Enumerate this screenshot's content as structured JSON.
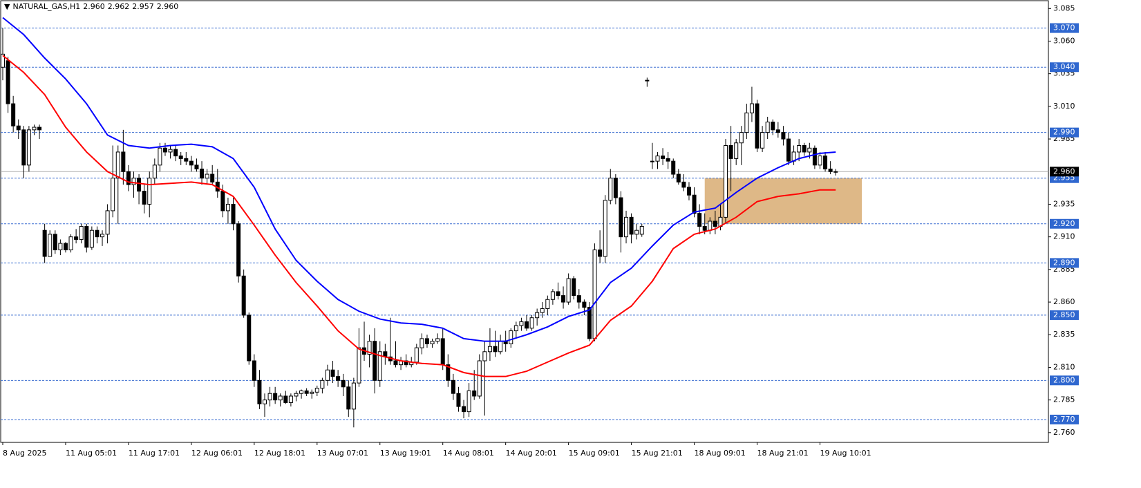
{
  "chart_data": {
    "type": "candlestick",
    "title": "NATURAL_GAS,H1",
    "header_ohlc": [
      "2.960",
      "2.962",
      "2.957",
      "2.960"
    ],
    "categories": [
      "8 Aug 2025",
      null,
      null,
      null,
      null,
      null,
      null,
      null,
      null,
      null,
      null,
      null,
      "11 Aug 05:01",
      null,
      null,
      null,
      null,
      null,
      null,
      null,
      null,
      null,
      null,
      null,
      "11 Aug 17:01",
      null,
      null,
      null,
      null,
      null,
      null,
      null,
      null,
      null,
      null,
      null,
      "12 Aug 06:01",
      null,
      null,
      null,
      null,
      null,
      null,
      null,
      null,
      null,
      null,
      null,
      "12 Aug 18:01",
      null,
      null,
      null,
      null,
      null,
      null,
      null,
      null,
      null,
      null,
      null,
      "13 Aug 07:01",
      null,
      null,
      null,
      null,
      null,
      null,
      null,
      null,
      null,
      null,
      null,
      "13 Aug 19:01",
      null,
      null,
      null,
      null,
      null,
      null,
      null,
      null,
      null,
      null,
      null,
      "14 Aug 08:01",
      null,
      null,
      null,
      null,
      null,
      null,
      null,
      null,
      null,
      null,
      null,
      "14 Aug 20:01",
      null,
      null,
      null,
      null,
      null,
      null,
      null,
      null,
      null,
      null,
      null,
      "15 Aug 09:01",
      null,
      null,
      null,
      null,
      null,
      null,
      null,
      null,
      null,
      null,
      null,
      "15 Aug 21:01",
      null,
      null,
      null,
      null,
      null,
      null,
      null,
      null,
      null,
      null,
      null,
      "18 Aug 09:01",
      null,
      null,
      null,
      null,
      null,
      null,
      null,
      null,
      null,
      null,
      null,
      "18 Aug 21:01",
      null,
      null,
      null,
      null,
      null,
      null,
      null,
      null,
      null,
      null,
      null,
      "19 Aug 10:01",
      null,
      null,
      null
    ],
    "ohlc": [
      [
        3.04,
        3.07,
        3.03,
        3.05
      ],
      [
        3.045,
        3.048,
        3.005,
        3.012
      ],
      [
        3.012,
        3.018,
        2.99,
        2.995
      ],
      [
        2.995,
        3.0,
        2.985,
        2.992
      ],
      [
        2.992,
        2.995,
        2.955,
        2.965
      ],
      [
        2.965,
        2.995,
        2.96,
        2.992
      ],
      [
        2.992,
        2.996,
        2.988,
        2.994
      ],
      [
        2.994,
        2.996,
        2.985,
        2.992
      ],
      [
        2.915,
        2.92,
        2.89,
        2.895
      ],
      [
        2.895,
        2.915,
        2.895,
        2.912
      ],
      [
        2.912,
        2.915,
        2.897,
        2.9
      ],
      [
        2.9,
        2.908,
        2.896,
        2.905
      ],
      [
        2.905,
        2.906,
        2.898,
        2.9
      ],
      [
        2.9,
        2.912,
        2.898,
        2.91
      ],
      [
        2.91,
        2.916,
        2.905,
        2.908
      ],
      [
        2.908,
        2.92,
        2.905,
        2.918
      ],
      [
        2.918,
        2.92,
        2.898,
        2.902
      ],
      [
        2.902,
        2.918,
        2.9,
        2.915
      ],
      [
        2.915,
        2.918,
        2.905,
        2.91
      ],
      [
        2.91,
        2.915,
        2.903,
        2.912
      ],
      [
        2.912,
        2.935,
        2.905,
        2.93
      ],
      [
        2.93,
        2.98,
        2.925,
        2.955
      ],
      [
        2.955,
        2.98,
        2.92,
        2.975
      ],
      [
        2.975,
        2.992,
        2.95,
        2.96
      ],
      [
        2.96,
        2.965,
        2.945,
        2.95
      ],
      [
        2.95,
        2.96,
        2.94,
        2.955
      ],
      [
        2.955,
        2.958,
        2.935,
        2.945
      ],
      [
        2.945,
        2.95,
        2.928,
        2.935
      ],
      [
        2.935,
        2.96,
        2.925,
        2.955
      ],
      [
        2.955,
        2.97,
        2.95,
        2.965
      ],
      [
        2.965,
        2.982,
        2.96,
        2.978
      ],
      [
        2.978,
        2.982,
        2.972,
        2.975
      ],
      [
        2.975,
        2.98,
        2.97,
        2.977
      ],
      [
        2.977,
        2.98,
        2.968,
        2.972
      ],
      [
        2.972,
        2.975,
        2.965,
        2.97
      ],
      [
        2.97,
        2.975,
        2.965,
        2.968
      ],
      [
        2.968,
        2.972,
        2.96,
        2.965
      ],
      [
        2.965,
        2.97,
        2.96,
        2.962
      ],
      [
        2.962,
        2.968,
        2.95,
        2.955
      ],
      [
        2.955,
        2.962,
        2.95,
        2.958
      ],
      [
        2.958,
        2.965,
        2.95,
        2.952
      ],
      [
        2.952,
        2.962,
        2.94,
        2.945
      ],
      [
        2.945,
        2.95,
        2.925,
        2.93
      ],
      [
        2.93,
        2.94,
        2.92,
        2.935
      ],
      [
        2.935,
        2.94,
        2.915,
        2.92
      ],
      [
        2.92,
        2.922,
        2.875,
        2.88
      ],
      [
        2.88,
        2.885,
        2.848,
        2.85
      ],
      [
        2.85,
        2.852,
        2.812,
        2.815
      ],
      [
        2.815,
        2.82,
        2.795,
        2.8
      ],
      [
        2.8,
        2.808,
        2.778,
        2.782
      ],
      [
        2.782,
        2.79,
        2.772,
        2.785
      ],
      [
        2.785,
        2.795,
        2.78,
        2.79
      ],
      [
        2.79,
        2.795,
        2.782,
        2.785
      ],
      [
        2.785,
        2.79,
        2.78,
        2.788
      ],
      [
        2.788,
        2.792,
        2.782,
        2.783
      ],
      [
        2.783,
        2.79,
        2.78,
        2.788
      ],
      [
        2.788,
        2.792,
        2.784,
        2.79
      ],
      [
        2.79,
        2.793,
        2.786,
        2.792
      ],
      [
        2.792,
        2.794,
        2.788,
        2.79
      ],
      [
        2.79,
        2.793,
        2.786,
        2.791
      ],
      [
        2.791,
        2.796,
        2.788,
        2.794
      ],
      [
        2.794,
        2.802,
        2.79,
        2.8
      ],
      [
        2.8,
        2.812,
        2.796,
        2.808
      ],
      [
        2.808,
        2.815,
        2.798,
        2.803
      ],
      [
        2.803,
        2.808,
        2.795,
        2.8
      ],
      [
        2.8,
        2.805,
        2.788,
        2.795
      ],
      [
        2.795,
        2.8,
        2.772,
        2.778
      ],
      [
        2.778,
        2.802,
        2.764,
        2.798
      ],
      [
        2.798,
        2.84,
        2.795,
        2.825
      ],
      [
        2.825,
        2.845,
        2.815,
        2.82
      ],
      [
        2.82,
        2.835,
        2.81,
        2.83
      ],
      [
        2.83,
        2.84,
        2.79,
        2.8
      ],
      [
        2.8,
        2.83,
        2.795,
        2.822
      ],
      [
        2.822,
        2.828,
        2.812,
        2.818
      ],
      [
        2.818,
        2.848,
        2.812,
        2.815
      ],
      [
        2.815,
        2.83,
        2.81,
        2.812
      ],
      [
        2.812,
        2.818,
        2.808,
        2.815
      ],
      [
        2.815,
        2.82,
        2.81,
        2.812
      ],
      [
        2.812,
        2.818,
        2.81,
        2.814
      ],
      [
        2.814,
        2.828,
        2.812,
        2.825
      ],
      [
        2.825,
        2.836,
        2.82,
        2.832
      ],
      [
        2.832,
        2.835,
        2.825,
        2.828
      ],
      [
        2.828,
        2.832,
        2.825,
        2.83
      ],
      [
        2.83,
        2.836,
        2.828,
        2.832
      ],
      [
        2.832,
        2.84,
        2.808,
        2.812
      ],
      [
        2.812,
        2.82,
        2.795,
        2.8
      ],
      [
        2.8,
        2.805,
        2.785,
        2.79
      ],
      [
        2.79,
        2.795,
        2.776,
        2.78
      ],
      [
        2.78,
        2.785,
        2.771,
        2.776
      ],
      [
        2.776,
        2.798,
        2.772,
        2.792
      ],
      [
        2.792,
        2.808,
        2.785,
        2.788
      ],
      [
        2.788,
        2.82,
        2.786,
        2.815
      ],
      [
        2.815,
        2.83,
        2.773,
        2.822
      ],
      [
        2.822,
        2.84,
        2.815,
        2.826
      ],
      [
        2.826,
        2.838,
        2.818,
        2.822
      ],
      [
        2.822,
        2.835,
        2.82,
        2.83
      ],
      [
        2.83,
        2.838,
        2.822,
        2.828
      ],
      [
        2.828,
        2.84,
        2.825,
        2.838
      ],
      [
        2.838,
        2.845,
        2.832,
        2.842
      ],
      [
        2.842,
        2.848,
        2.838,
        2.845
      ],
      [
        2.845,
        2.85,
        2.838,
        2.84
      ],
      [
        2.84,
        2.85,
        2.838,
        2.848
      ],
      [
        2.848,
        2.855,
        2.842,
        2.852
      ],
      [
        2.852,
        2.86,
        2.848,
        2.855
      ],
      [
        2.855,
        2.865,
        2.85,
        2.862
      ],
      [
        2.862,
        2.87,
        2.858,
        2.868
      ],
      [
        2.868,
        2.875,
        2.862,
        2.865
      ],
      [
        2.865,
        2.872,
        2.855,
        2.86
      ],
      [
        2.86,
        2.882,
        2.858,
        2.878
      ],
      [
        2.878,
        2.88,
        2.862,
        2.865
      ],
      [
        2.865,
        2.87,
        2.855,
        2.86
      ],
      [
        2.86,
        2.862,
        2.85,
        2.856
      ],
      [
        2.856,
        2.86,
        2.83,
        2.832
      ],
      [
        2.832,
        2.905,
        2.83,
        2.9
      ],
      [
        2.9,
        2.915,
        2.89,
        2.895
      ],
      [
        2.895,
        2.942,
        2.89,
        2.938
      ],
      [
        2.938,
        2.962,
        2.935,
        2.955
      ],
      [
        2.955,
        2.958,
        2.935,
        2.94
      ],
      [
        2.94,
        2.945,
        2.898,
        2.91
      ],
      [
        2.91,
        2.93,
        2.905,
        2.925
      ],
      [
        2.925,
        2.928,
        2.905,
        2.912
      ],
      [
        2.912,
        2.92,
        2.908,
        2.915
      ],
      [
        2.912,
        2.92,
        2.91,
        2.918
      ],
      [
        3.03,
        3.032,
        3.025,
        3.03
      ],
      [
        2.968,
        2.982,
        2.962,
        2.968
      ],
      [
        2.968,
        2.975,
        2.962,
        2.972
      ],
      [
        2.972,
        2.978,
        2.965,
        2.97
      ],
      [
        2.97,
        2.975,
        2.962,
        2.968
      ],
      [
        2.968,
        2.97,
        2.955,
        2.958
      ],
      [
        2.958,
        2.962,
        2.95,
        2.952
      ],
      [
        2.952,
        2.958,
        2.945,
        2.948
      ],
      [
        2.948,
        2.952,
        2.938,
        2.942
      ],
      [
        2.942,
        2.948,
        2.925,
        2.928
      ],
      [
        2.928,
        2.935,
        2.912,
        2.918
      ],
      [
        2.918,
        2.928,
        2.912,
        2.915
      ],
      [
        2.915,
        2.925,
        2.912,
        2.922
      ],
      [
        2.922,
        2.93,
        2.912,
        2.918
      ],
      [
        2.918,
        2.935,
        2.915,
        2.925
      ],
      [
        2.925,
        2.985,
        2.92,
        2.98
      ],
      [
        2.98,
        2.995,
        2.945,
        2.97
      ],
      [
        2.97,
        2.985,
        2.965,
        2.982
      ],
      [
        2.982,
        2.995,
        2.965,
        2.99
      ],
      [
        2.99,
        3.012,
        2.985,
        3.005
      ],
      [
        3.005,
        3.025,
        2.998,
        3.012
      ],
      [
        3.012,
        3.015,
        2.975,
        2.978
      ],
      [
        2.978,
        2.995,
        2.975,
        2.99
      ],
      [
        2.99,
        3.002,
        2.985,
        2.998
      ],
      [
        2.998,
        3.0,
        2.988,
        2.992
      ],
      [
        2.992,
        2.998,
        2.986,
        2.99
      ],
      [
        2.99,
        2.995,
        2.98,
        2.985
      ],
      [
        2.985,
        2.99,
        2.965,
        2.968
      ],
      [
        2.968,
        2.98,
        2.965,
        2.975
      ],
      [
        2.975,
        2.985,
        2.968,
        2.98
      ],
      [
        2.98,
        2.982,
        2.972,
        2.975
      ],
      [
        2.975,
        2.982,
        2.97,
        2.978
      ],
      [
        2.978,
        2.98,
        2.962,
        2.965
      ],
      [
        2.965,
        2.975,
        2.962,
        2.972
      ],
      [
        2.972,
        2.975,
        2.96,
        2.962
      ],
      [
        2.962,
        2.968,
        2.958,
        2.96
      ],
      [
        2.96,
        2.962,
        2.957,
        2.96
      ]
    ],
    "indicators": {
      "x": [
        0,
        4,
        8,
        12,
        16,
        20,
        24,
        28,
        32,
        36,
        40,
        44,
        48,
        52,
        56,
        60,
        64,
        68,
        72,
        76,
        80,
        84,
        88,
        92,
        96,
        100,
        104,
        108,
        112,
        116,
        120,
        124,
        128,
        132,
        136,
        140,
        144,
        148,
        152,
        156,
        159
      ],
      "series": [
        {
          "color": "#0000ff",
          "values": [
            3.078,
            3.065,
            3.047,
            3.031,
            3.012,
            2.988,
            2.98,
            2.978,
            2.98,
            2.981,
            2.979,
            2.97,
            2.948,
            2.916,
            2.892,
            2.876,
            2.862,
            2.853,
            2.847,
            2.844,
            2.843,
            2.84,
            2.832,
            2.83,
            2.83,
            2.835,
            2.841,
            2.849,
            2.854,
            2.875,
            2.886,
            2.903,
            2.919,
            2.929,
            2.932,
            2.944,
            2.955,
            2.963,
            2.97,
            2.974,
            2.975
          ]
        },
        {
          "color": "#ff0000",
          "values": [
            3.049,
            3.036,
            3.019,
            2.994,
            2.975,
            2.96,
            2.952,
            2.95,
            2.951,
            2.952,
            2.95,
            2.941,
            2.919,
            2.896,
            2.875,
            2.857,
            2.838,
            2.824,
            2.819,
            2.815,
            2.813,
            2.812,
            2.806,
            2.803,
            2.803,
            2.807,
            2.814,
            2.821,
            2.827,
            2.846,
            2.857,
            2.876,
            2.901,
            2.912,
            2.916,
            2.925,
            2.937,
            2.941,
            2.943,
            2.946,
            2.946
          ]
        }
      ]
    },
    "ylim": [
      2.7525,
      3.0915
    ],
    "yticks": [
      3.085,
      {
        "value": 3.06,
        "label": "3.060"
      },
      3.035,
      {
        "value": 3.01,
        "label": "3.010"
      },
      2.985,
      2.935,
      {
        "value": 2.91,
        "label": "2.910"
      },
      2.885,
      {
        "value": 2.86,
        "label": "2.860"
      },
      2.835,
      {
        "value": 2.81,
        "label": "2.810"
      },
      2.785,
      {
        "value": 2.76,
        "label": "2.760"
      }
    ],
    "levels": [
      {
        "value": 3.07,
        "label": "3.070"
      },
      {
        "value": 3.04,
        "label": "3.040"
      },
      {
        "value": 2.99,
        "label": "2.990"
      },
      {
        "value": 2.955,
        "label": "2.955"
      },
      {
        "value": 2.92,
        "label": "2.920"
      },
      {
        "value": 2.89,
        "label": "2.890"
      },
      {
        "value": 2.85,
        "label": "2.850"
      },
      {
        "value": 2.8,
        "label": "2.800"
      },
      {
        "value": 2.77,
        "label": "2.770"
      }
    ],
    "current": {
      "value": 2.96,
      "label": "2.960"
    },
    "zone": {
      "x_range": [
        134,
        164
      ],
      "y_range": [
        2.92,
        2.955
      ],
      "color": "#deb887"
    }
  }
}
